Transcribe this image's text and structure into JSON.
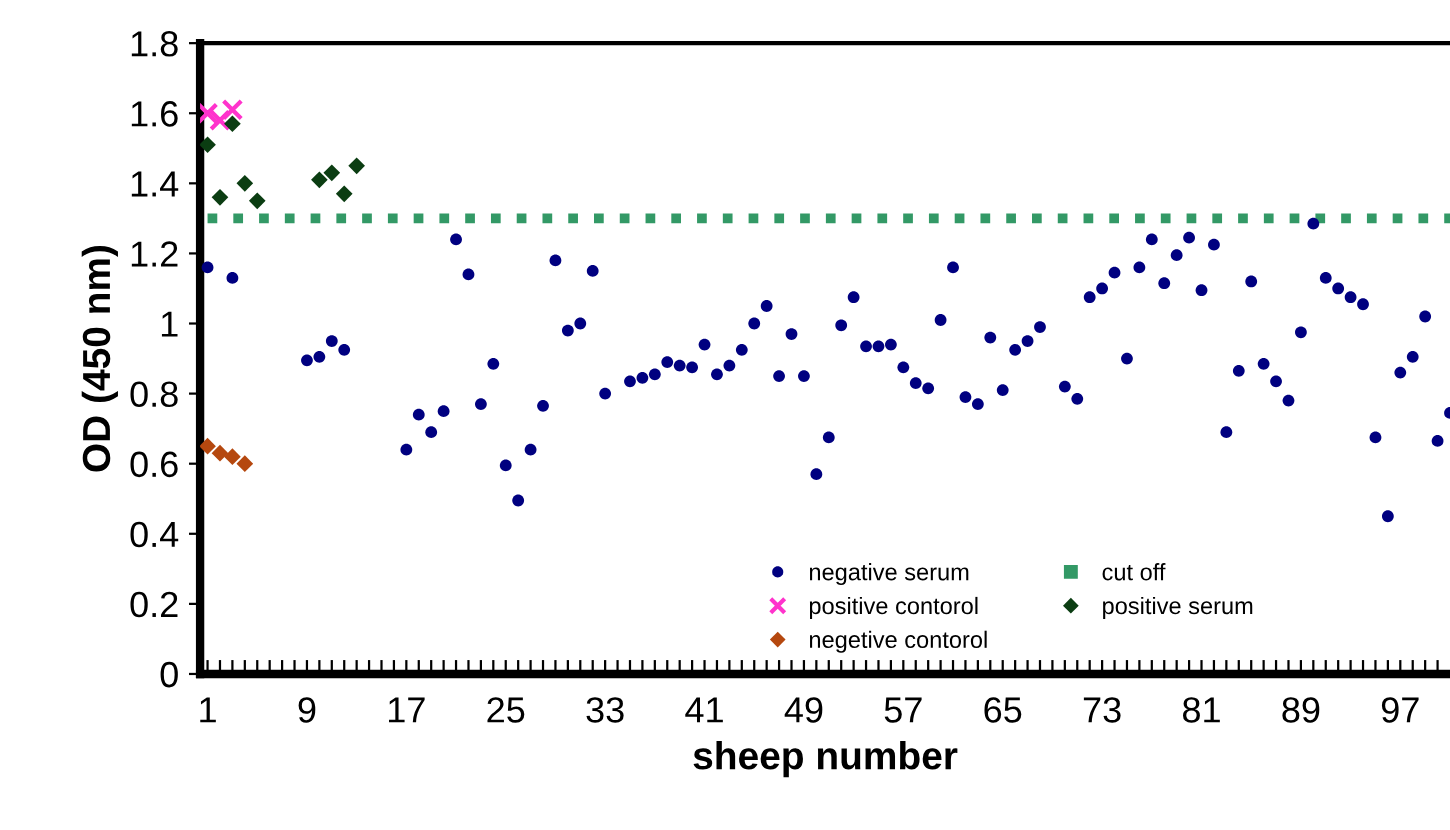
{
  "chart_data": {
    "type": "scatter",
    "xlabel": "sheep number",
    "ylabel": "OD (450 nm)",
    "xlim": [
      0.4,
      101
    ],
    "ylim": [
      0,
      1.8
    ],
    "xticks": [
      1,
      {
        "value": 2,
        "label": null
      },
      {
        "value": 3,
        "label": null
      },
      {
        "value": 4,
        "label": null
      },
      {
        "value": 5,
        "label": null
      },
      {
        "value": 6,
        "label": null
      },
      {
        "value": 7,
        "label": null
      },
      {
        "value": 8,
        "label": null
      },
      9,
      {
        "value": 10,
        "label": null
      },
      {
        "value": 11,
        "label": null
      },
      {
        "value": 12,
        "label": null
      },
      {
        "value": 13,
        "label": null
      },
      {
        "value": 14,
        "label": null
      },
      {
        "value": 15,
        "label": null
      },
      {
        "value": 16,
        "label": null
      },
      17,
      {
        "value": 18,
        "label": null
      },
      {
        "value": 19,
        "label": null
      },
      {
        "value": 20,
        "label": null
      },
      {
        "value": 21,
        "label": null
      },
      {
        "value": 22,
        "label": null
      },
      {
        "value": 23,
        "label": null
      },
      {
        "value": 24,
        "label": null
      },
      25,
      {
        "value": 26,
        "label": null
      },
      {
        "value": 27,
        "label": null
      },
      {
        "value": 28,
        "label": null
      },
      {
        "value": 29,
        "label": null
      },
      {
        "value": 30,
        "label": null
      },
      {
        "value": 31,
        "label": null
      },
      {
        "value": 32,
        "label": null
      },
      33,
      {
        "value": 34,
        "label": null
      },
      {
        "value": 35,
        "label": null
      },
      {
        "value": 36,
        "label": null
      },
      {
        "value": 37,
        "label": null
      },
      {
        "value": 38,
        "label": null
      },
      {
        "value": 39,
        "label": null
      },
      {
        "value": 40,
        "label": null
      },
      41,
      {
        "value": 42,
        "label": null
      },
      {
        "value": 43,
        "label": null
      },
      {
        "value": 44,
        "label": null
      },
      {
        "value": 45,
        "label": null
      },
      {
        "value": 46,
        "label": null
      },
      {
        "value": 47,
        "label": null
      },
      {
        "value": 48,
        "label": null
      },
      49,
      {
        "value": 50,
        "label": null
      },
      {
        "value": 51,
        "label": null
      },
      {
        "value": 52,
        "label": null
      },
      {
        "value": 53,
        "label": null
      },
      {
        "value": 54,
        "label": null
      },
      {
        "value": 55,
        "label": null
      },
      {
        "value": 56,
        "label": null
      },
      57,
      {
        "value": 58,
        "label": null
      },
      {
        "value": 59,
        "label": null
      },
      {
        "value": 60,
        "label": null
      },
      {
        "value": 61,
        "label": null
      },
      {
        "value": 62,
        "label": null
      },
      {
        "value": 63,
        "label": null
      },
      {
        "value": 64,
        "label": null
      },
      65,
      {
        "value": 66,
        "label": null
      },
      {
        "value": 67,
        "label": null
      },
      {
        "value": 68,
        "label": null
      },
      {
        "value": 69,
        "label": null
      },
      {
        "value": 70,
        "label": null
      },
      {
        "value": 71,
        "label": null
      },
      {
        "value": 72,
        "label": null
      },
      73,
      {
        "value": 74,
        "label": null
      },
      {
        "value": 75,
        "label": null
      },
      {
        "value": 76,
        "label": null
      },
      {
        "value": 77,
        "label": null
      },
      {
        "value": 78,
        "label": null
      },
      {
        "value": 79,
        "label": null
      },
      {
        "value": 80,
        "label": null
      },
      81,
      {
        "value": 82,
        "label": null
      },
      {
        "value": 83,
        "label": null
      },
      {
        "value": 84,
        "label": null
      },
      {
        "value": 85,
        "label": null
      },
      {
        "value": 86,
        "label": null
      },
      {
        "value": 87,
        "label": null
      },
      {
        "value": 88,
        "label": null
      },
      89,
      {
        "value": 90,
        "label": null
      },
      {
        "value": 91,
        "label": null
      },
      {
        "value": 92,
        "label": null
      },
      {
        "value": 93,
        "label": null
      },
      {
        "value": 94,
        "label": null
      },
      {
        "value": 95,
        "label": null
      },
      {
        "value": 96,
        "label": null
      },
      97,
      {
        "value": 98,
        "label": null
      },
      {
        "value": 99,
        "label": null
      },
      {
        "value": 100,
        "label": null
      }
    ],
    "yticks": [
      0,
      0.2,
      0.4,
      0.6,
      0.8,
      1,
      1.2,
      1.4,
      1.6,
      1.8
    ],
    "grid": false,
    "legend": "bottom right",
    "series": [
      {
        "name": "negative serum",
        "color": "#000080",
        "marker": "circle",
        "x": [
          1,
          3,
          9,
          10,
          11,
          12,
          17,
          18,
          19,
          20,
          21,
          22,
          23,
          24,
          25,
          26,
          27,
          28,
          29,
          30,
          31,
          32,
          33,
          35,
          36,
          37,
          38,
          39,
          40,
          41,
          42,
          43,
          44,
          45,
          46,
          47,
          48,
          49,
          50,
          51,
          52,
          53,
          54,
          55,
          56,
          57,
          58,
          59,
          60,
          61,
          62,
          63,
          64,
          65,
          66,
          67,
          68,
          70,
          71,
          72,
          73,
          74,
          75,
          76,
          77,
          78,
          79,
          80,
          81,
          82,
          83,
          84,
          85,
          86,
          87,
          88,
          89,
          90,
          91,
          92,
          93,
          94,
          95,
          96,
          97,
          98,
          99,
          100,
          101
        ],
        "values": [
          1.16,
          1.13,
          0.895,
          0.905,
          0.95,
          0.925,
          0.64,
          0.74,
          0.69,
          0.75,
          1.24,
          1.14,
          0.77,
          0.885,
          0.595,
          0.495,
          0.64,
          0.765,
          1.18,
          0.98,
          1.0,
          1.15,
          0.8,
          0.835,
          0.845,
          0.855,
          0.89,
          0.88,
          0.875,
          0.94,
          0.855,
          0.88,
          0.925,
          1.0,
          1.05,
          0.85,
          0.97,
          0.85,
          0.57,
          0.675,
          0.995,
          1.075,
          0.935,
          0.935,
          0.94,
          0.875,
          0.83,
          0.815,
          1.01,
          1.16,
          0.79,
          0.77,
          0.96,
          0.81,
          0.925,
          0.95,
          0.99,
          0.82,
          0.785,
          1.075,
          1.1,
          1.145,
          0.9,
          1.16,
          1.24,
          1.115,
          1.195,
          1.245,
          1.095,
          1.225,
          0.69,
          0.865,
          1.12,
          0.885,
          0.835,
          0.78,
          0.975,
          1.285,
          1.13,
          1.1,
          1.075,
          1.055,
          0.675,
          0.45,
          0.86,
          0.905,
          1.02,
          0.665,
          0.745
        ]
      },
      {
        "name": "positive contorol",
        "color": "#ff33cc",
        "marker": "cross",
        "x": [
          1,
          2,
          3
        ],
        "values": [
          1.6,
          1.58,
          1.61
        ]
      },
      {
        "name": "negetive contorol",
        "color": "#b5480f",
        "marker": "diamond",
        "x": [
          1,
          2,
          3,
          4
        ],
        "values": [
          0.65,
          0.63,
          0.62,
          0.6
        ]
      },
      {
        "name": "cut off",
        "type": "line",
        "color": "#339966",
        "marker": "none",
        "line_style": "dotted",
        "x": [
          1,
          101
        ],
        "values": [
          1.3,
          1.3
        ]
      },
      {
        "name": "positive serum",
        "color": "#0b3d12",
        "marker": "diamond",
        "x": [
          1,
          2,
          3,
          4,
          5,
          10,
          11,
          12,
          13
        ],
        "values": [
          1.51,
          1.36,
          1.57,
          1.4,
          1.35,
          1.41,
          1.43,
          1.37,
          1.45
        ]
      }
    ]
  }
}
